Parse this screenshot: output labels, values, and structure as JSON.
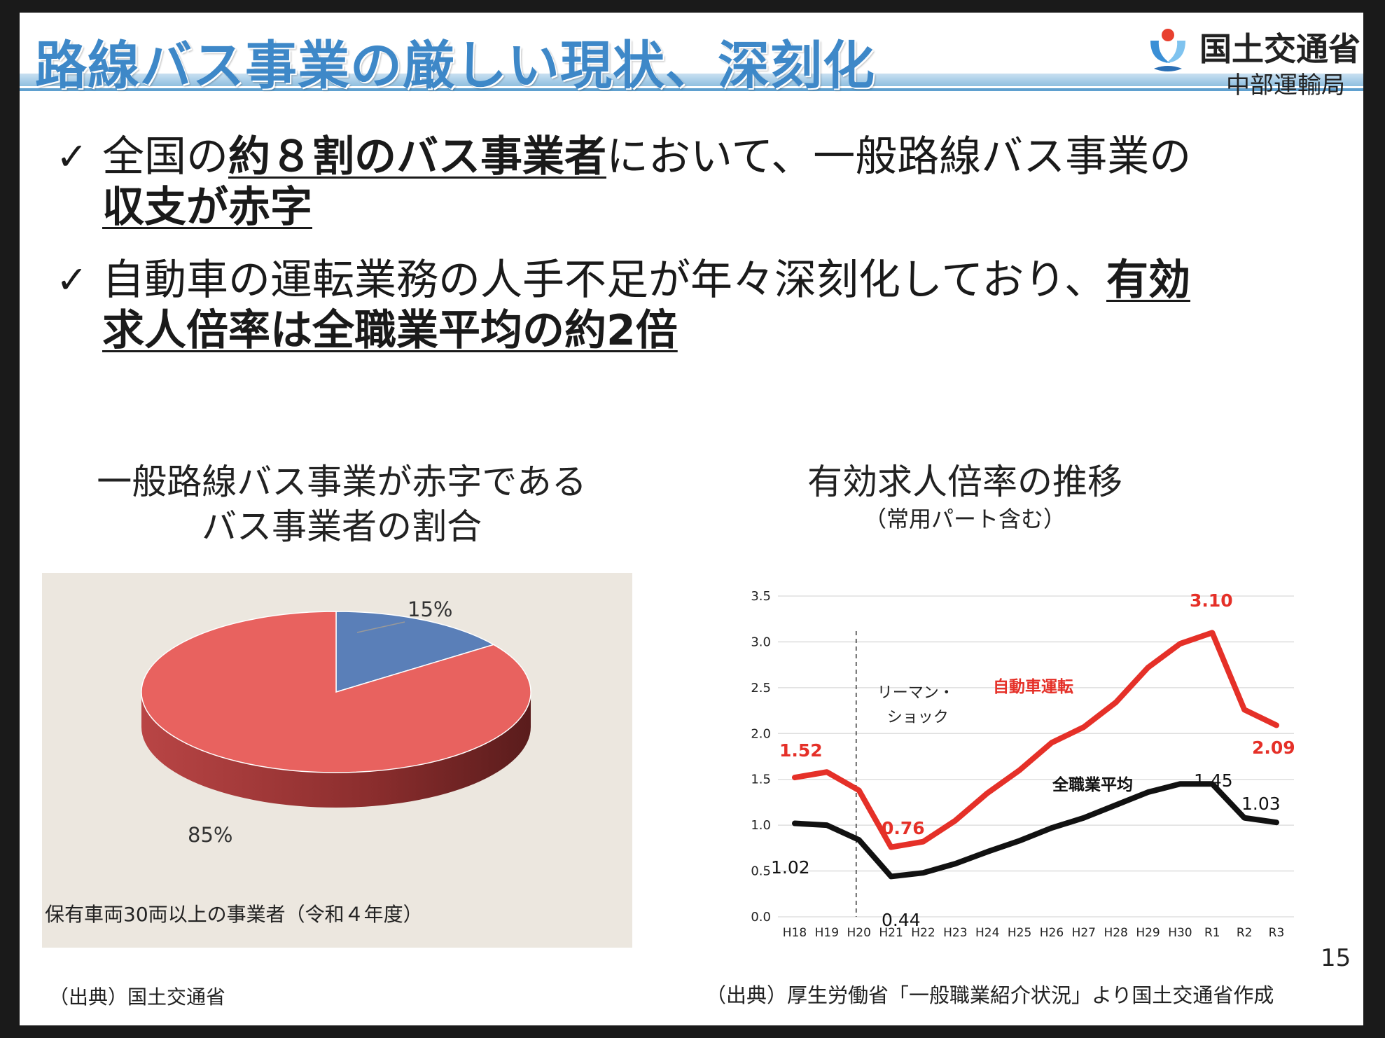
{
  "header": {
    "title": "路線バス事業の厳しい現状、深刻化",
    "org_name": "国土交通省",
    "org_sub": "中部運輸局"
  },
  "bullets": [
    {
      "check": "✓",
      "line1_pre": "全国の",
      "line1_em": "約８割のバス事業者",
      "line1_post": "において、一般路線バス事業の",
      "line2_em": "収支が赤字"
    },
    {
      "check": "✓",
      "line1_pre": "自動車の運転業務の人手不足が年々深刻化しており、",
      "line1_em": "有効",
      "line2_em": "求人倍率は全職業平均の約2倍"
    }
  ],
  "pie_section": {
    "title_line1": "一般路線バス事業が赤字である",
    "title_line2": "バス事業者の割合",
    "note": "保有車両30両以上の事業者（令和４年度）",
    "source": "（出典）国土交通省"
  },
  "line_section": {
    "title": "有効求人倍率の推移",
    "subtitle": "（常用パート含む）",
    "annotation_line1": "リーマン・",
    "annotation_line2": "ショック",
    "source": "（出典）厚生労働省「一般職業紹介状況」より国土交通省作成"
  },
  "page_number": "15",
  "chart_data": [
    {
      "type": "pie",
      "slices": [
        {
          "label": "15%",
          "value": 15,
          "color": "#5a7fb8"
        },
        {
          "label": "85%",
          "value": 85,
          "color": "#e8625f"
        }
      ]
    },
    {
      "type": "line",
      "categories": [
        "H18",
        "H19",
        "H20",
        "H21",
        "H22",
        "H23",
        "H24",
        "H25",
        "H26",
        "H27",
        "H28",
        "H29",
        "H30",
        "R1",
        "R2",
        "R3"
      ],
      "ylim": [
        0,
        3.5
      ],
      "yticks": [
        "0.0",
        "0.5",
        "1.0",
        "1.5",
        "2.0",
        "2.5",
        "3.0",
        "3.5"
      ],
      "grid": true,
      "series": [
        {
          "name": "自動車運転",
          "color": "#e53028",
          "values": [
            1.52,
            1.58,
            1.38,
            0.76,
            0.82,
            1.05,
            1.35,
            1.6,
            1.9,
            2.07,
            2.34,
            2.72,
            2.98,
            3.1,
            2.26,
            2.09
          ],
          "data_labels": [
            "1.52",
            "0.76",
            "3.10",
            "2.09"
          ]
        },
        {
          "name": "全職業平均",
          "color": "#111111",
          "values": [
            1.02,
            1.0,
            0.84,
            0.44,
            0.48,
            0.58,
            0.71,
            0.83,
            0.97,
            1.08,
            1.22,
            1.36,
            1.45,
            1.45,
            1.08,
            1.03
          ],
          "data_labels": [
            "1.02",
            "0.44",
            "1.45",
            "1.03"
          ]
        }
      ]
    }
  ]
}
